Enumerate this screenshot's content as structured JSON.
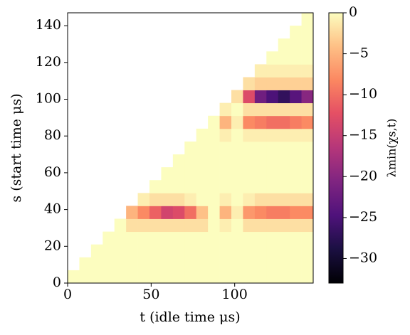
{
  "chart_data": {
    "type": "heatmap",
    "x_label": "t  (idle time μs)",
    "y_label": "s  (start time μs)",
    "colorbar_label": "λmin(χs,t)",
    "colormap": "magma",
    "xlim": [
      0,
      147
    ],
    "ylim": [
      0,
      147
    ],
    "xticks": [
      0,
      50,
      100
    ],
    "yticks": [
      0,
      20,
      40,
      60,
      80,
      100,
      120,
      140
    ],
    "clim": [
      -33,
      0
    ],
    "cticks": [
      0,
      {
        "value": -5,
        "label": "−5"
      },
      {
        "value": -10,
        "label": "−10"
      },
      {
        "value": -15,
        "label": "−15"
      },
      {
        "value": -20,
        "label": "−20"
      },
      {
        "value": -25,
        "label": "−25"
      },
      {
        "value": -30,
        "label": "−30"
      }
    ],
    "z": [
      [
        0,
        0,
        0,
        0,
        0,
        0,
        0,
        0,
        0,
        0,
        0,
        0,
        0,
        0,
        0,
        0,
        0,
        0,
        0,
        0,
        0
      ],
      [
        null,
        0,
        0,
        0,
        0,
        0,
        0,
        0,
        0,
        0,
        0,
        0,
        0,
        0,
        0,
        0,
        0,
        0,
        0,
        0,
        0
      ],
      [
        null,
        null,
        0,
        0,
        0,
        0,
        0,
        0,
        0,
        0,
        0,
        0,
        0,
        0,
        0,
        0,
        0,
        0,
        0,
        0,
        0
      ],
      [
        null,
        null,
        null,
        0,
        0,
        0,
        0,
        0,
        0,
        0,
        0,
        0,
        0,
        0,
        0,
        0,
        0,
        0,
        0,
        0,
        0
      ],
      [
        null,
        null,
        null,
        null,
        0,
        -2,
        -2,
        -2,
        -2,
        -2,
        -2,
        -2,
        0,
        -1,
        0,
        -2,
        -2,
        -2,
        -2,
        -2,
        -2
      ],
      [
        null,
        null,
        null,
        null,
        null,
        -5,
        -8,
        -11,
        -14,
        -13,
        -10,
        -4,
        0,
        -5,
        -1,
        -7,
        -8,
        -9,
        -9,
        -8,
        -8
      ],
      [
        null,
        null,
        null,
        null,
        null,
        null,
        -1,
        -2,
        -2,
        -2,
        -1,
        0,
        0,
        -1,
        0,
        -1,
        -2,
        -2,
        -2,
        -2,
        -2
      ],
      [
        null,
        null,
        null,
        null,
        null,
        null,
        null,
        0,
        0,
        0,
        0,
        0,
        0,
        0,
        0,
        0,
        0,
        0,
        0,
        0,
        0
      ],
      [
        null,
        null,
        null,
        null,
        null,
        null,
        null,
        null,
        0,
        0,
        0,
        0,
        0,
        0,
        0,
        0,
        0,
        0,
        0,
        0,
        0
      ],
      [
        null,
        null,
        null,
        null,
        null,
        null,
        null,
        null,
        null,
        0,
        0,
        0,
        0,
        0,
        0,
        0,
        0,
        0,
        0,
        0,
        0
      ],
      [
        null,
        null,
        null,
        null,
        null,
        null,
        null,
        null,
        null,
        null,
        0,
        0,
        0,
        0,
        0,
        0,
        0,
        0,
        0,
        0,
        0
      ],
      [
        null,
        null,
        null,
        null,
        null,
        null,
        null,
        null,
        null,
        null,
        null,
        0,
        0,
        -1,
        0,
        -1,
        -1,
        -1,
        -1,
        -1,
        -1
      ],
      [
        null,
        null,
        null,
        null,
        null,
        null,
        null,
        null,
        null,
        null,
        null,
        null,
        0,
        -5,
        -1,
        -8,
        -9,
        -10,
        -10,
        -9,
        -8
      ],
      [
        null,
        null,
        null,
        null,
        null,
        null,
        null,
        null,
        null,
        null,
        null,
        null,
        null,
        -1,
        0,
        -2,
        -2,
        -2,
        -2,
        -2,
        -2
      ],
      [
        null,
        null,
        null,
        null,
        null,
        null,
        null,
        null,
        null,
        null,
        null,
        null,
        null,
        null,
        -2,
        -13,
        -22,
        -25,
        -27,
        -24,
        -20
      ],
      [
        null,
        null,
        null,
        null,
        null,
        null,
        null,
        null,
        null,
        null,
        null,
        null,
        null,
        null,
        null,
        -2,
        -3,
        -3,
        -3,
        -3,
        -3
      ],
      [
        null,
        null,
        null,
        null,
        null,
        null,
        null,
        null,
        null,
        null,
        null,
        null,
        null,
        null,
        null,
        null,
        -1,
        -1,
        -1,
        -1,
        -1
      ],
      [
        null,
        null,
        null,
        null,
        null,
        null,
        null,
        null,
        null,
        null,
        null,
        null,
        null,
        null,
        null,
        null,
        null,
        0,
        0,
        0,
        0
      ],
      [
        null,
        null,
        null,
        null,
        null,
        null,
        null,
        null,
        null,
        null,
        null,
        null,
        null,
        null,
        null,
        null,
        null,
        null,
        0,
        0,
        0
      ],
      [
        null,
        null,
        null,
        null,
        null,
        null,
        null,
        null,
        null,
        null,
        null,
        null,
        null,
        null,
        null,
        null,
        null,
        null,
        null,
        0,
        0
      ],
      [
        null,
        null,
        null,
        null,
        null,
        null,
        null,
        null,
        null,
        null,
        null,
        null,
        null,
        null,
        null,
        null,
        null,
        null,
        null,
        null,
        0
      ]
    ]
  }
}
